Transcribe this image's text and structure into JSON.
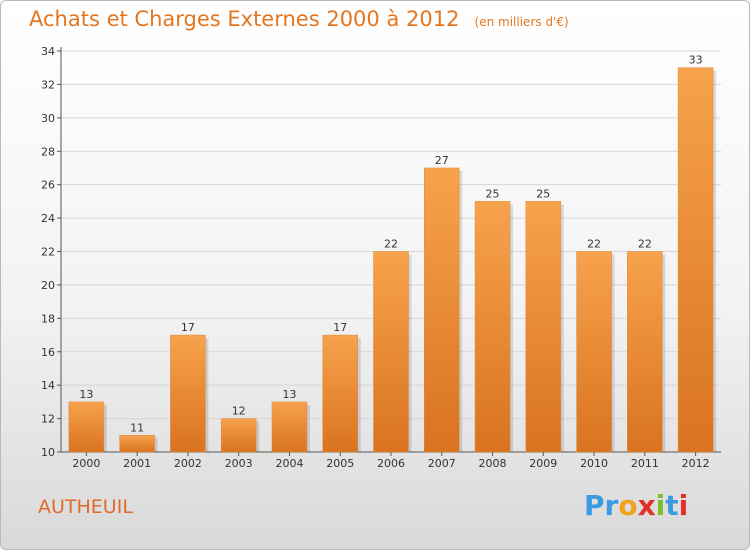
{
  "header": {
    "title": "Achats et Charges Externes 2000 à 2012",
    "unit": "(en milliers d'€)"
  },
  "footer": {
    "city": "AUTHEUIL",
    "logo_letters": [
      "P",
      "r",
      "o",
      "x",
      "i",
      "t",
      "i"
    ],
    "logo_colors": [
      "#3a9be0",
      "#3a9be0",
      "#f0a21c",
      "#e0302a",
      "#7bbf2a",
      "#3a9be0",
      "#e0302a"
    ]
  },
  "chart_data": {
    "type": "bar",
    "categories": [
      "2000",
      "2001",
      "2002",
      "2003",
      "2004",
      "2005",
      "2006",
      "2007",
      "2008",
      "2009",
      "2010",
      "2011",
      "2012"
    ],
    "values": [
      13,
      11,
      17,
      12,
      13,
      17,
      22,
      27,
      25,
      25,
      22,
      22,
      33
    ],
    "data_labels": [
      "13",
      "11",
      "17",
      "12",
      "13",
      "17",
      "22",
      "27",
      "25",
      "25",
      "22",
      "22",
      "33"
    ],
    "yticks": [
      "10",
      "12",
      "14",
      "16",
      "18",
      "20",
      "22",
      "24",
      "26",
      "28",
      "30",
      "32",
      "34"
    ],
    "ylim": [
      10,
      34
    ],
    "bar_color_top": "#f7a24d",
    "bar_color_bottom": "#d9731f",
    "grid": true
  }
}
